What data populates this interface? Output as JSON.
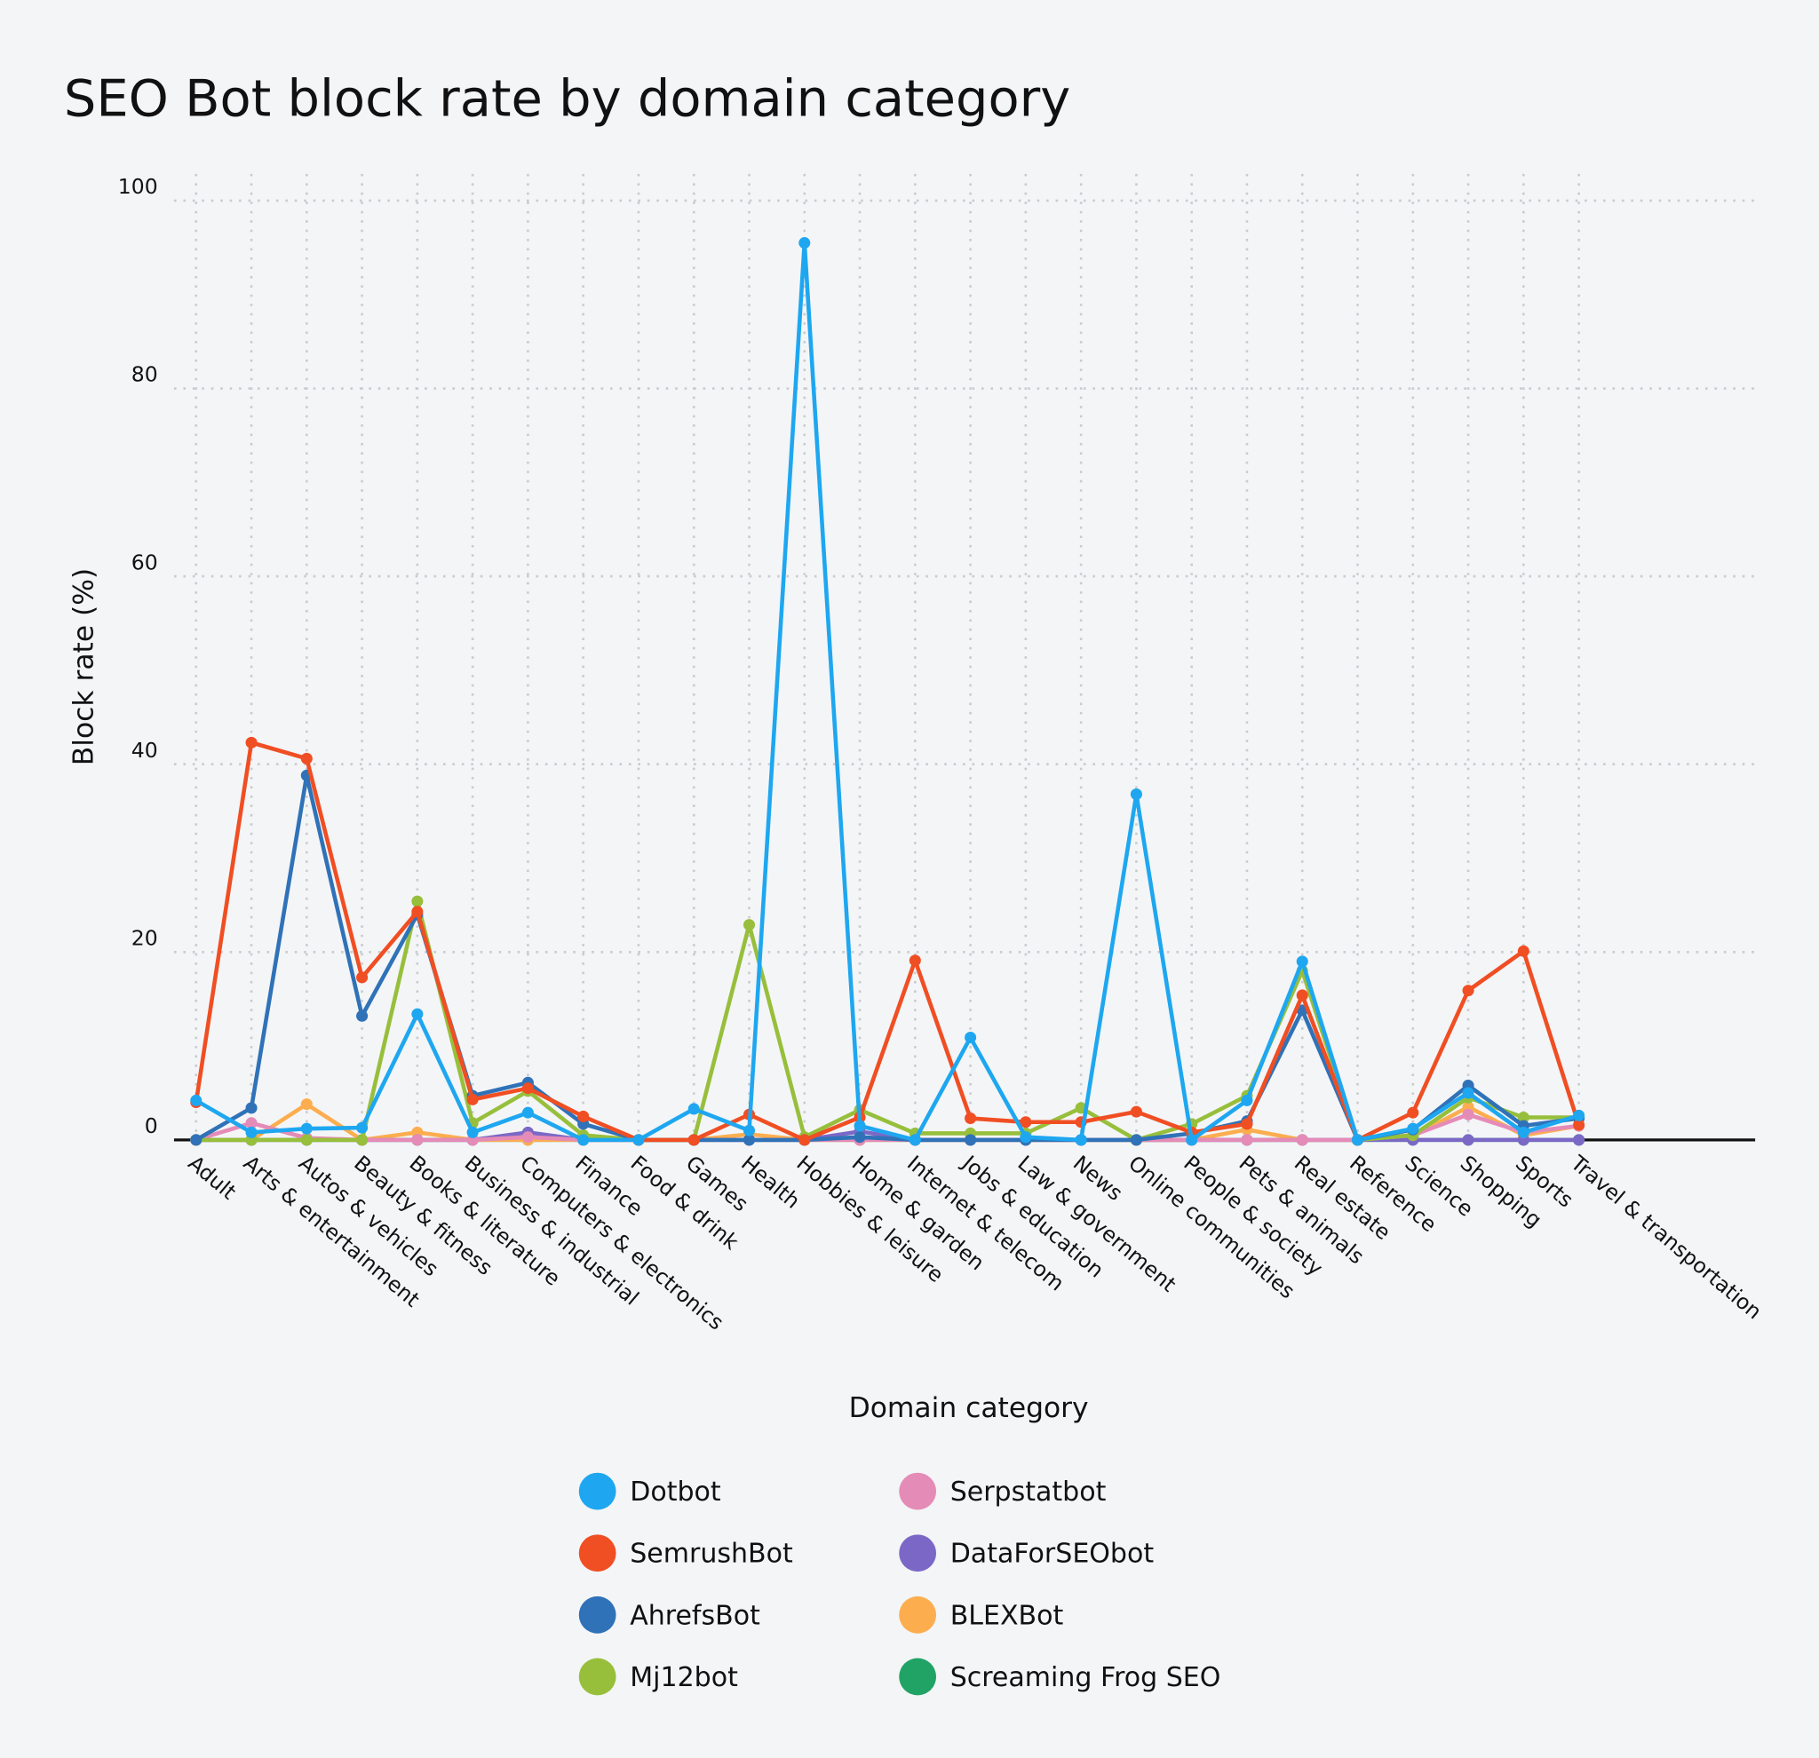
{
  "chart_data": {
    "type": "line",
    "title": "SEO Bot block rate by domain category",
    "x_label": "Domain category",
    "y_label": "Block rate (%)",
    "categories": [
      "Adult",
      "Arts & entertainment",
      "Autos & vehicles",
      "Beauty & fitness",
      "Books & literature",
      "Business & industrial",
      "Computers & electronics",
      "Finance",
      "Food & drink",
      "Games",
      "Health",
      "Hobbies & leisure",
      "Home & garden",
      "Internet & telecom",
      "Jobs & education",
      "Law & government",
      "News",
      "Online communities",
      "People & society",
      "Pets & animals",
      "Real estate",
      "Reference",
      "Science",
      "Shopping",
      "Sports",
      "Travel & transportation"
    ],
    "series": [
      {
        "name": "Dotbot",
        "color": "#1ea7f0",
        "values": [
          4.2,
          0.8,
          1.2,
          1.3,
          13.4,
          0.8,
          2.9,
          0,
          0,
          3.3,
          1,
          95.5,
          1.5,
          0,
          10.9,
          0.3,
          0,
          36.8,
          0,
          4.2,
          19,
          0,
          1.2,
          5,
          0.8,
          2.6
        ]
      },
      {
        "name": "SemrushBot",
        "color": "#f04e23",
        "values": [
          4,
          42.3,
          40.6,
          17.3,
          24.3,
          4.3,
          5.5,
          2.5,
          0,
          0,
          2.7,
          0,
          2.4,
          19.1,
          2.3,
          1.9,
          1.9,
          3,
          0.8,
          1.7,
          15.4,
          0,
          2.9,
          15.9,
          20.1,
          1.6
        ]
      },
      {
        "name": "AhrefsBot",
        "color": "#2f72b8",
        "values": [
          0,
          3.4,
          38.8,
          13.2,
          24,
          4.7,
          6.1,
          1.7,
          0,
          0,
          0,
          0,
          0.3,
          0,
          0,
          0,
          0,
          0,
          0.7,
          2,
          13.8,
          0,
          1.1,
          5.8,
          1.5,
          2.3
        ]
      },
      {
        "name": "Mj12bot",
        "color": "#97bf3b",
        "values": [
          0,
          0,
          0,
          0,
          25.4,
          1.8,
          5.2,
          0.5,
          0,
          0,
          22.9,
          0.3,
          3.2,
          0.7,
          0.7,
          0.7,
          3.4,
          0,
          1.7,
          4.7,
          18,
          0,
          0.5,
          4.5,
          2.4,
          2.4
        ]
      },
      {
        "name": "Serpstatbot",
        "color": "#e58bb7",
        "values": [
          0,
          1.8,
          0.2,
          0,
          0,
          0,
          0.3,
          0,
          0,
          0,
          0,
          0,
          0,
          0,
          0,
          0,
          0,
          0,
          0,
          0,
          0,
          0,
          0.5,
          2.7,
          0.8,
          1.5
        ]
      },
      {
        "name": "DataForSEObot",
        "color": "#7b68c6",
        "values": [
          0,
          0,
          0,
          0,
          0,
          0,
          0.8,
          0,
          0,
          0,
          0,
          0,
          0.9,
          0,
          0,
          0,
          0,
          0,
          0,
          0,
          0,
          0,
          0,
          0,
          0,
          0
        ]
      },
      {
        "name": "BLEXBot",
        "color": "#fcae4f",
        "values": [
          0,
          0,
          3.8,
          0,
          0.8,
          0,
          0,
          0,
          0,
          0,
          0.6,
          0,
          0,
          0,
          0,
          0,
          0,
          0,
          0,
          1.1,
          0,
          0,
          0.4,
          3.5,
          0.5,
          1.5
        ]
      },
      {
        "name": "Screaming Frog SEO",
        "color": "#21a366",
        "values": [
          0,
          0,
          0,
          0,
          0,
          0,
          0,
          0,
          0,
          0,
          0,
          0,
          0,
          0,
          0,
          0,
          0,
          0,
          0,
          0,
          0,
          0,
          0,
          0,
          0,
          0
        ]
      }
    ],
    "ylim": [
      0,
      100
    ],
    "yticks": [
      0,
      20,
      40,
      60,
      80,
      100
    ],
    "grid": true
  }
}
